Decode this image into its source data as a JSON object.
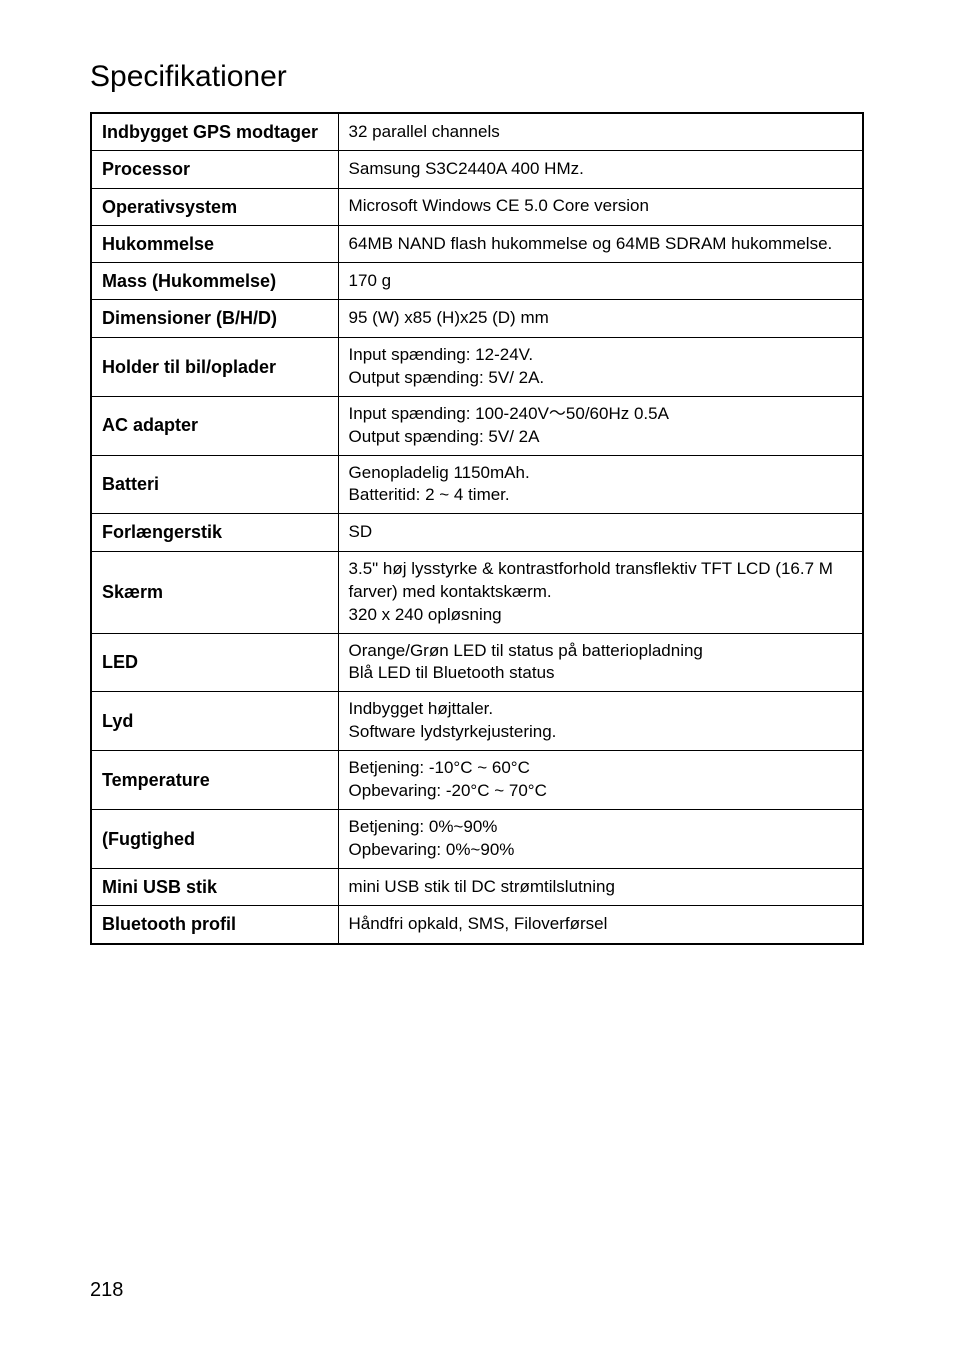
{
  "title": "Specifikationer",
  "page_number": "218",
  "table": {
    "font_family": "Arial",
    "title_fontsize": 30,
    "label_fontsize": 18,
    "value_fontsize": 17,
    "label_col_width_pct": 32,
    "border_color": "#000000",
    "background_color": "#ffffff",
    "text_color": "#000000",
    "rows": [
      {
        "label": "Indbygget GPS modtager",
        "value": "32 parallel channels"
      },
      {
        "label": "Processor",
        "value": "Samsung S3C2440A 400 HMz."
      },
      {
        "label": "Operativsystem",
        "value": "Microsoft Windows CE 5.0 Core version"
      },
      {
        "label": "Hukommelse",
        "value": "64MB NAND flash hukommelse og 64MB SDRAM hukommelse."
      },
      {
        "label": "Mass (Hukommelse)",
        "value": "170 g"
      },
      {
        "label": "Dimensioner (B/H/D)",
        "value": "95 (W) x85 (H)x25 (D) mm"
      },
      {
        "label": "Holder til bil/oplader",
        "value": "Input spænding: 12-24V.\nOutput spænding: 5V/ 2A."
      },
      {
        "label": "AC adapter",
        "value": "Input spænding: 100-240V～50/60Hz    0.5A\nOutput spænding: 5V/ 2A"
      },
      {
        "label": "Batteri",
        "value": "Genopladelig 1150mAh.\nBatteritid: 2 ~ 4 timer."
      },
      {
        "label": "Forlængerstik",
        "value": "SD"
      },
      {
        "label": "Skærm",
        "value": "3.5\" høj lysstyrke & kontrastforhold transflektiv TFT LCD (16.7 M farver) med kontaktskærm.\n320 x 240 opløsning"
      },
      {
        "label": "LED",
        "value": "Orange/Grøn LED til status på batteriopladning\nBlå LED til Bluetooth status"
      },
      {
        "label": "Lyd",
        "value": "Indbygget højttaler.\nSoftware lydstyrkejustering."
      },
      {
        "label": "Temperature",
        "value": "Betjening:  -10°C ~ 60°C\nOpbevaring:  -20°C ~ 70°C"
      },
      {
        "label": " (Fugtighed",
        "value": "Betjening: 0%~90%\nOpbevaring: 0%~90%"
      },
      {
        "label": "Mini USB stik",
        "value": "mini USB stik til DC strømtilslutning"
      },
      {
        "label": "Bluetooth profil",
        "value": "Håndfri opkald, SMS, Filoverførsel"
      }
    ]
  }
}
